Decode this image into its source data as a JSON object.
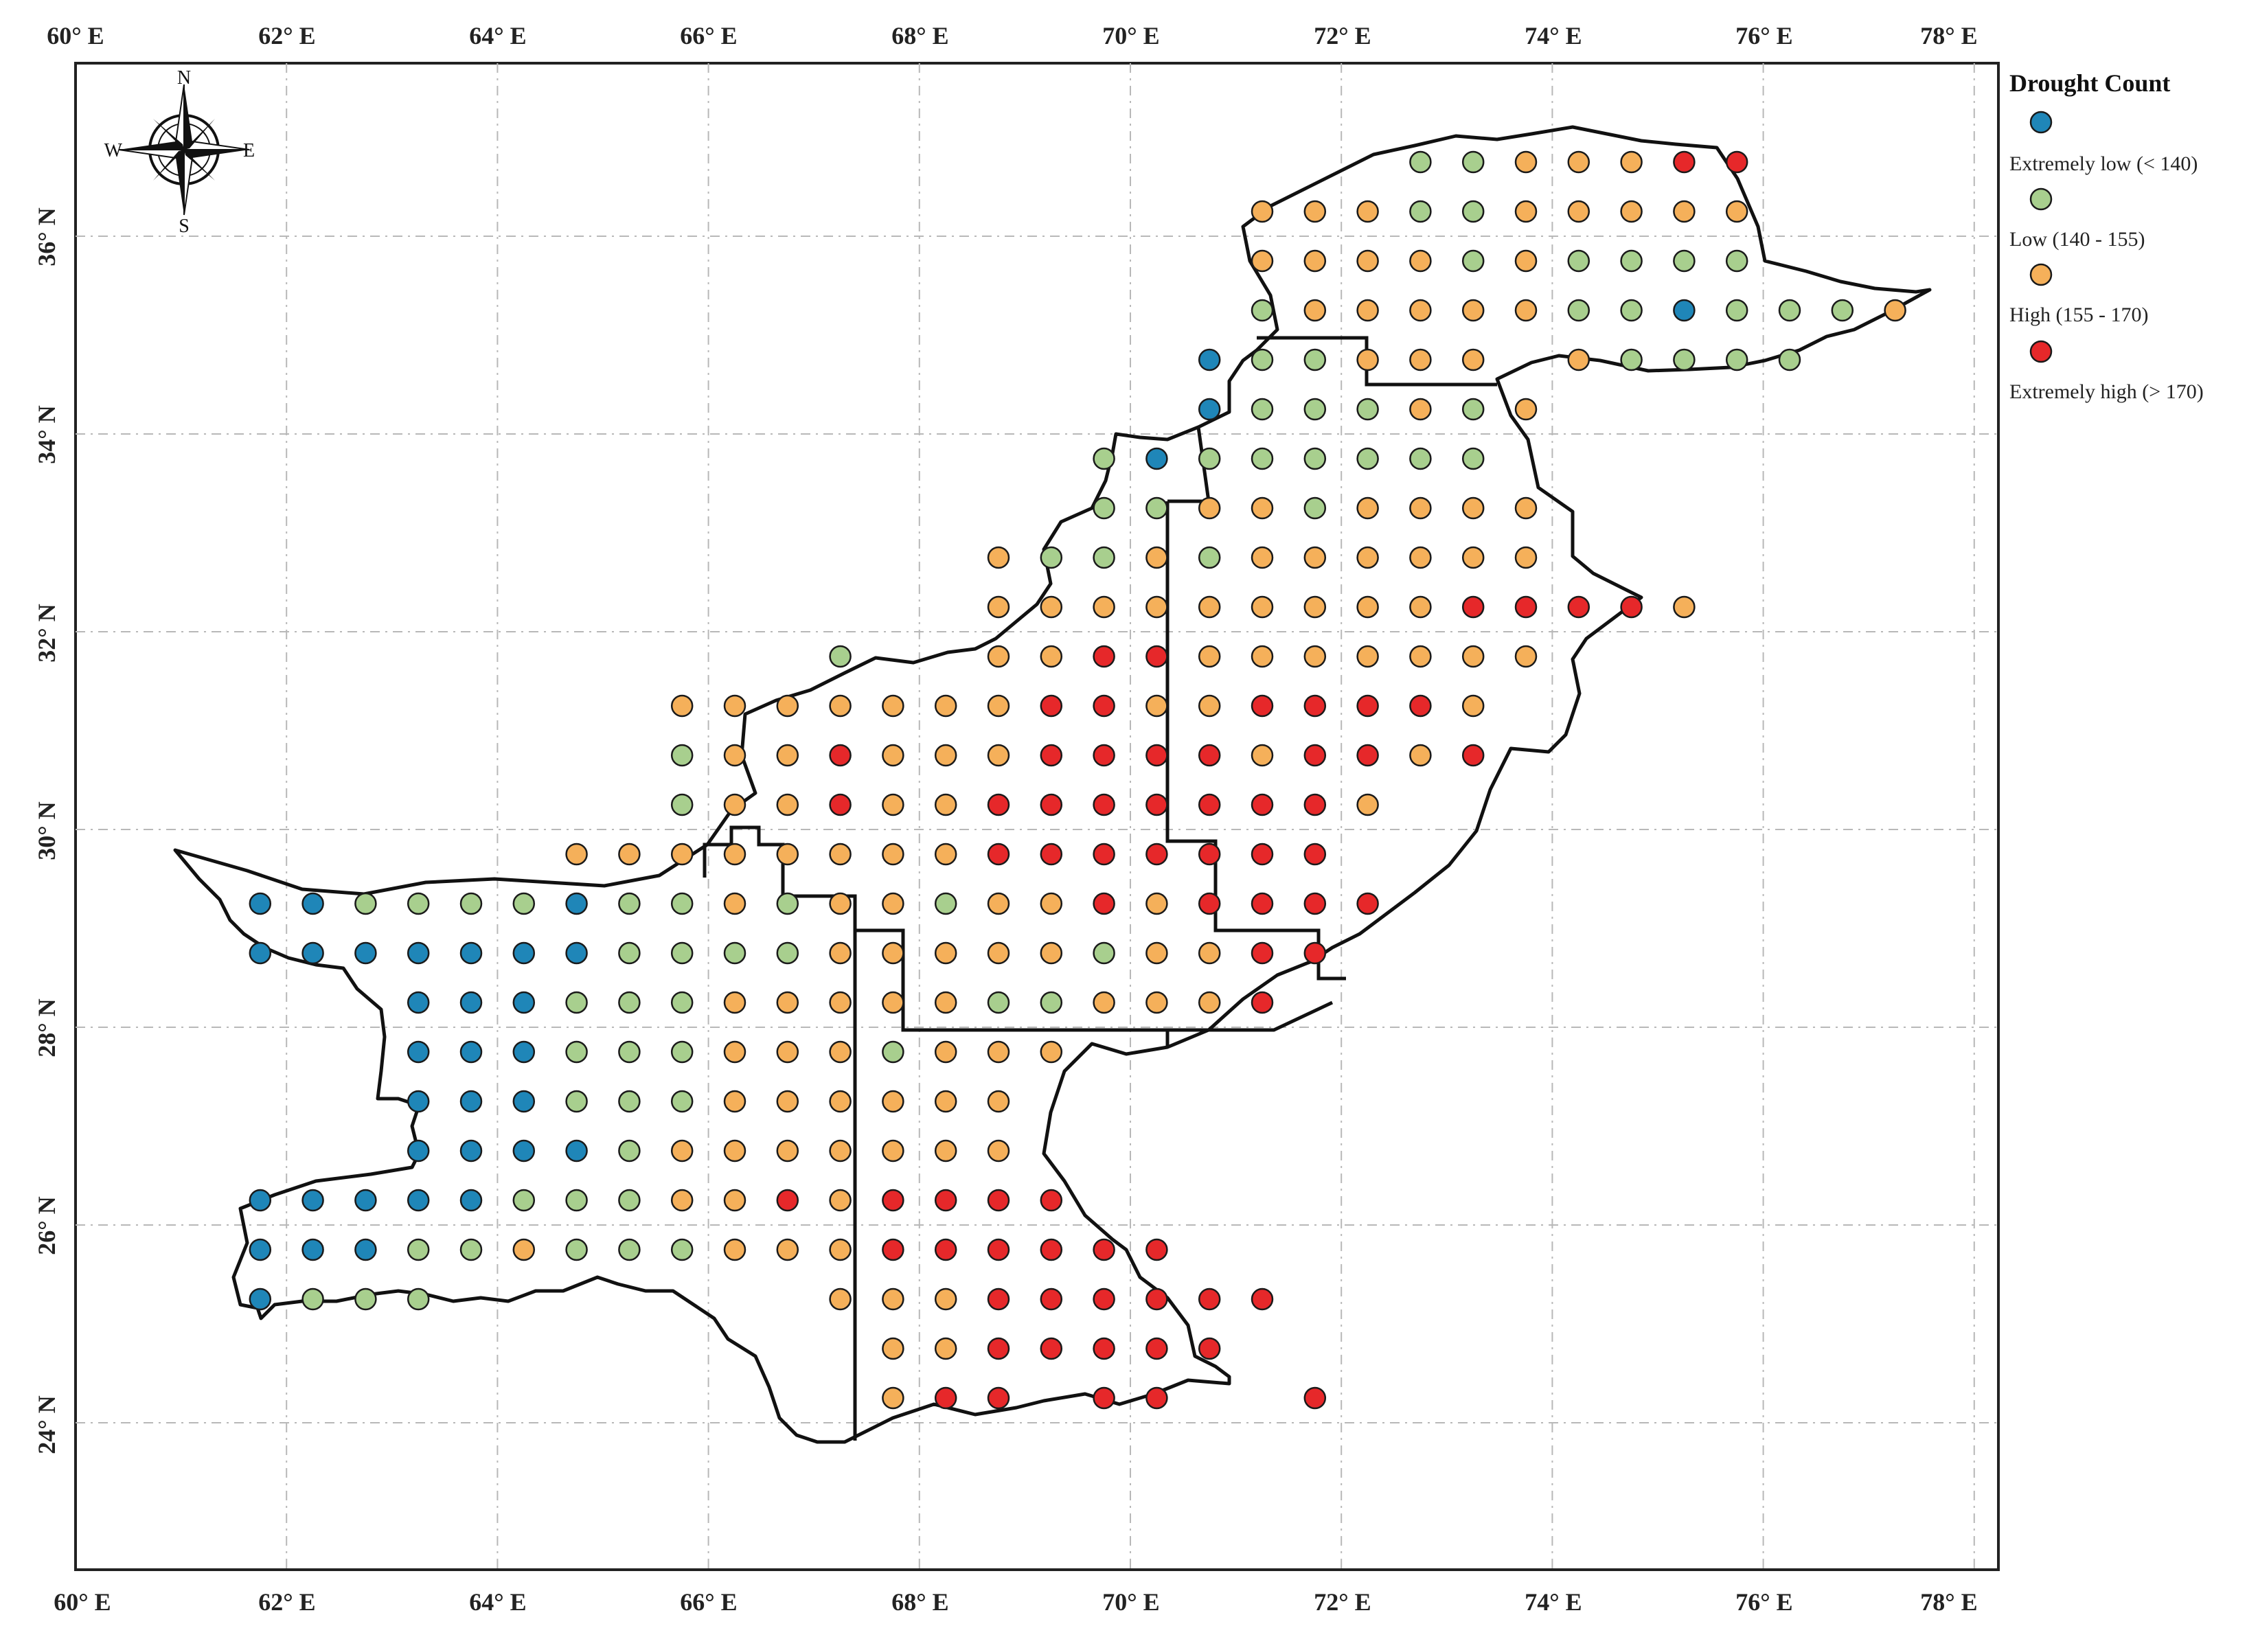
{
  "legend": {
    "title": "Drought Count",
    "items": [
      {
        "key": "extremely_low",
        "label": "Extremely low (< 140)",
        "color": "#1f86b8"
      },
      {
        "key": "low",
        "label": "Low (140 - 155)",
        "color": "#a8cf8e"
      },
      {
        "key": "high",
        "label": "High (155 - 170)",
        "color": "#f5b05a"
      },
      {
        "key": "extremely_high",
        "label": "Extremely high (> 170)",
        "color": "#e6282a"
      }
    ]
  },
  "compass": {
    "n": "N",
    "s": "S",
    "e": "E",
    "w": "W",
    "icon": "compass-rose-icon"
  },
  "axes": {
    "x_ticks": [
      "60° E",
      "62° E",
      "64° E",
      "66° E",
      "68° E",
      "70° E",
      "72° E",
      "74° E",
      "76° E",
      "78° E"
    ],
    "y_ticks": [
      "24° N",
      "26° N",
      "28° N",
      "30° N",
      "32° N",
      "34° N",
      "36° N"
    ],
    "lon_range": [
      60,
      78.5
    ],
    "lat_range": [
      22.6,
      37.9
    ]
  },
  "colors": {
    "L1": "#1f86b8",
    "L2": "#a8cf8e",
    "L3": "#f5b05a",
    "L4": "#e6282a",
    "outline": "#111111",
    "grid": "#b8b8b8"
  },
  "grid_points": {
    "lon0": 61.75,
    "lat_top": 36.75,
    "step": 0.5,
    "rows": [
      "......................LLHHHXX....",
      "...................HHHLLHHHHH....",
      "...................HHHHLHLLLL....",
      "...................LHHHHHLLELLLH.",
      "..................ELLHHH.HLLLL...",
      "..................ELLLHLH........",
      "................LELLLLLL.........",
      "................LLHHLHHHH........",
      "..............HLLHLHHHHHH........",
      "..............HHHHHHHHHXXXXH.....",
      "...........L..HHXXHHHHHHH........",
      "........HHHHHHHXXHHXXXXH.........",
      "........LHHXHHHXXXXHXXHX.........",
      "........LHHXHHXXXXXXXH...........",
      "......HHHHHHHHXXXXXXX............",
      "EELLLLELLHLHHLHHXHXXXX...........",
      "EEEEEEELLLLHHHHHLHHXX............",
      "...EEELLLHHHHHLLHHHX.............",
      "...EEELLLHHHLHHH.................",
      "...EEELLLHHHHHH..................",
      "...EEEELHHHHHHH..................",
      "EEEEELLLHHXHXXXX.................",
      "EEELLHLLLHHHXXXXXX...............",
      "ELLL.......HHHXXXXXX.............",
      "............HHXXXXX..............",
      "............HXX.XX..X............"
    ]
  }
}
